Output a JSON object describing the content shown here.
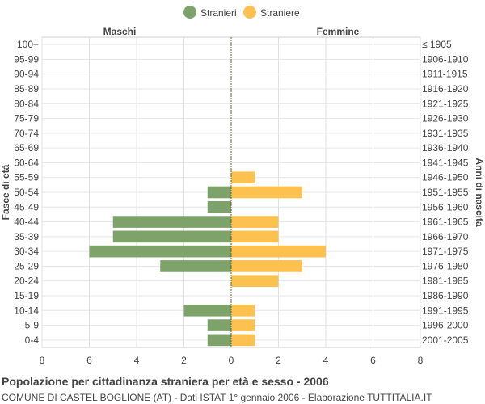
{
  "chart_data": {
    "type": "bar",
    "orientation": "horizontal-pyramid",
    "title": "Popolazione per cittadinanza straniera per età e sesso - 2006",
    "subtitle": "COMUNE DI CASTEL BOGLIONE (AT) - Dati ISTAT 1° gennaio 2006 - Elaborazione TUTTITALIA.IT",
    "ylabel_left": "Fasce di età",
    "ylabel_right": "Anni di nascita",
    "side_labels": {
      "left": "Maschi",
      "right": "Femmine"
    },
    "legend": {
      "placement": "top-center"
    },
    "xlim": [
      -8,
      8
    ],
    "xticks": [
      8,
      6,
      4,
      2,
      0,
      2,
      4,
      6,
      8
    ],
    "grid": true,
    "categories": [
      "100+",
      "95-99",
      "90-94",
      "85-89",
      "80-84",
      "75-79",
      "70-74",
      "65-69",
      "60-64",
      "55-59",
      "50-54",
      "45-49",
      "40-44",
      "35-39",
      "30-34",
      "25-29",
      "20-24",
      "15-19",
      "10-14",
      "5-9",
      "0-4"
    ],
    "birth_years": [
      "≤ 1905",
      "1906-1910",
      "1911-1915",
      "1916-1920",
      "1921-1925",
      "1926-1930",
      "1931-1935",
      "1936-1940",
      "1941-1945",
      "1946-1950",
      "1951-1955",
      "1956-1960",
      "1961-1965",
      "1966-1970",
      "1971-1975",
      "1976-1980",
      "1981-1985",
      "1986-1990",
      "1991-1995",
      "1996-2000",
      "2001-2005"
    ],
    "series": [
      {
        "name": "Stranieri",
        "color": "#7ea36a",
        "side": "left",
        "values": [
          0,
          0,
          0,
          0,
          0,
          0,
          0,
          0,
          0,
          0,
          1,
          1,
          5,
          5,
          6,
          3,
          0,
          0,
          2,
          1,
          1
        ]
      },
      {
        "name": "Straniere",
        "color": "#fcc14f",
        "side": "right",
        "values": [
          0,
          0,
          0,
          0,
          0,
          0,
          0,
          0,
          0,
          1,
          3,
          0,
          2,
          2,
          4,
          3,
          2,
          0,
          1,
          1,
          1
        ]
      }
    ]
  }
}
